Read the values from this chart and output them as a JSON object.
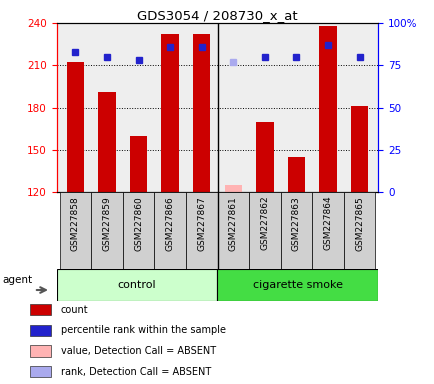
{
  "title": "GDS3054 / 208730_x_at",
  "samples": [
    "GSM227858",
    "GSM227859",
    "GSM227860",
    "GSM227866",
    "GSM227867",
    "GSM227861",
    "GSM227862",
    "GSM227863",
    "GSM227864",
    "GSM227865"
  ],
  "count_values": [
    212,
    191,
    160,
    232,
    232,
    null,
    170,
    145,
    238,
    181
  ],
  "absent_value": 125,
  "absent_index": 5,
  "percentile_values": [
    83,
    80,
    78,
    86,
    86,
    null,
    80,
    80,
    87,
    80
  ],
  "absent_percentile": 77,
  "absent_percentile_index": 5,
  "ymin": 120,
  "ymax": 240,
  "y2min": 0,
  "y2max": 100,
  "yticks": [
    120,
    150,
    180,
    210,
    240
  ],
  "y2ticks": [
    0,
    25,
    50,
    75,
    100
  ],
  "bar_color": "#cc0000",
  "absent_bar_color": "#ffb3b3",
  "dot_color": "#2222cc",
  "absent_dot_color": "#aaaaee",
  "control_group": [
    0,
    1,
    2,
    3,
    4
  ],
  "smoke_group": [
    5,
    6,
    7,
    8,
    9
  ],
  "control_label": "control",
  "smoke_label": "cigarette smoke",
  "agent_label": "agent",
  "control_bg": "#ccffcc",
  "smoke_bg": "#44dd44",
  "legend_items": [
    {
      "color": "#cc0000",
      "label": "count"
    },
    {
      "color": "#2222cc",
      "label": "percentile rank within the sample"
    },
    {
      "color": "#ffb3b3",
      "label": "value, Detection Call = ABSENT"
    },
    {
      "color": "#aaaaee",
      "label": "rank, Detection Call = ABSENT"
    }
  ],
  "bar_width": 0.55
}
